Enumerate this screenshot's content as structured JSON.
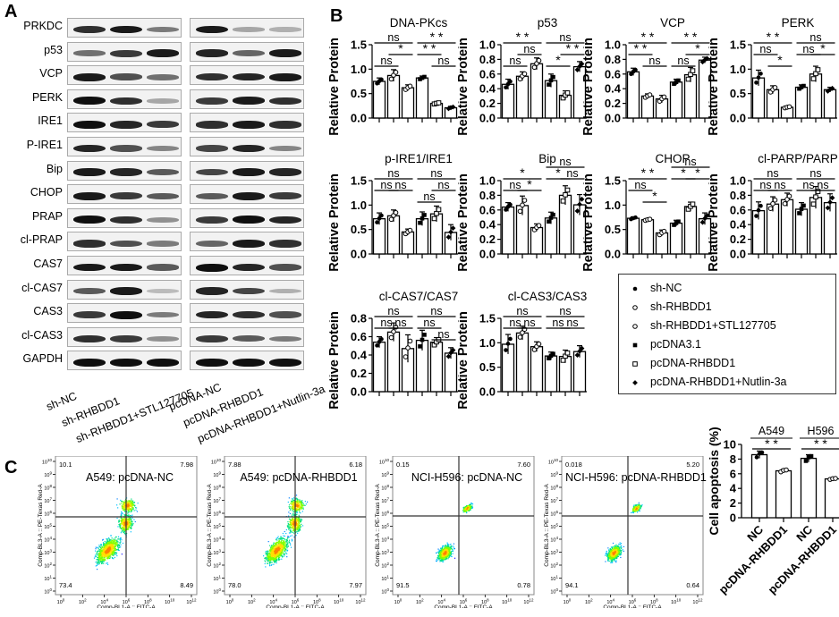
{
  "panels": {
    "A": "A",
    "B": "B",
    "C": "C"
  },
  "blot": {
    "proteins": [
      "PRKDC",
      "p53",
      "VCP",
      "PERK",
      "IRE1",
      "P-IRE1",
      "Bip",
      "CHOP",
      "PRAP",
      "cl-PRAP",
      "CAS7",
      "cl-CAS7",
      "CAS3",
      "cl-CAS3",
      "GAPDH"
    ],
    "lanes": [
      "sh-NC",
      "sh-RHBDD1",
      "sh-RHBDD1+STL127705",
      "pcDNA-NC",
      "pcDNA-RHBDD1",
      "pcDNA-RHBDD1+Nutlin-3a"
    ],
    "band_intensity": [
      [
        0.85,
        0.95,
        0.5,
        0.95,
        0.3,
        0.25
      ],
      [
        0.55,
        0.8,
        0.95,
        0.9,
        0.6,
        0.95
      ],
      [
        0.95,
        0.7,
        0.55,
        0.85,
        0.9,
        0.95
      ],
      [
        1.0,
        0.85,
        0.3,
        0.8,
        0.95,
        0.85
      ],
      [
        1.0,
        0.9,
        0.8,
        0.85,
        0.95,
        0.85
      ],
      [
        0.9,
        0.7,
        0.45,
        0.75,
        0.9,
        0.45
      ],
      [
        0.95,
        0.9,
        0.65,
        0.75,
        0.95,
        0.9
      ],
      [
        0.95,
        0.8,
        0.65,
        0.65,
        0.95,
        0.8
      ],
      [
        1.0,
        0.85,
        0.4,
        0.8,
        1.0,
        0.9
      ],
      [
        0.85,
        0.7,
        0.5,
        0.6,
        0.95,
        0.85
      ],
      [
        0.95,
        0.95,
        0.65,
        1.0,
        0.9,
        0.7
      ],
      [
        0.65,
        0.95,
        0.2,
        0.9,
        0.75,
        0.25
      ],
      [
        0.8,
        1.0,
        0.5,
        0.9,
        0.85,
        0.7
      ],
      [
        0.85,
        0.8,
        0.4,
        0.8,
        0.65,
        0.5
      ],
      [
        1.0,
        1.0,
        1.0,
        1.0,
        1.0,
        1.0
      ]
    ]
  },
  "legend": [
    {
      "marker": "filled-circle",
      "label": "sh-NC"
    },
    {
      "marker": "open-circle",
      "label": "sh-RHBDD1"
    },
    {
      "marker": "open-circle-small",
      "label": "sh-RHBDD1+STL127705"
    },
    {
      "marker": "filled-square",
      "label": "pcDNA3.1"
    },
    {
      "marker": "open-square",
      "label": "pcDNA-RHBDD1"
    },
    {
      "marker": "filled-diamond",
      "label": "pcDNA-RHBDD1+Nutlin-3a"
    }
  ],
  "chart_data": [
    {
      "type": "bar",
      "title": "DNA-PKcs",
      "ylabel": "Relative Protein",
      "ylim": [
        0,
        1.5
      ],
      "yticks": [
        "0.0",
        "0.5",
        "1.0",
        "1.5"
      ],
      "tickvals": [
        0,
        0.5,
        1.0,
        1.5
      ],
      "values": [
        0.75,
        0.87,
        0.62,
        0.82,
        0.3,
        0.21
      ],
      "errors": [
        0.07,
        0.12,
        0.06,
        0.04,
        0.02,
        0.03
      ],
      "sig": [
        {
          "a": 0,
          "b": 2,
          "label": "ns",
          "lvl": 2
        },
        {
          "a": 1,
          "b": 2,
          "label": "*",
          "lvl": 1
        },
        {
          "a": 0,
          "b": 1,
          "label": "ns",
          "lvl": 0
        },
        {
          "a": 3,
          "b": 5,
          "label": "**",
          "lvl": 2
        },
        {
          "a": 3,
          "b": 4,
          "label": "**",
          "lvl": 1
        },
        {
          "a": 4,
          "b": 5,
          "label": "ns",
          "lvl": 0
        }
      ]
    },
    {
      "type": "bar",
      "title": "p53",
      "ylabel": "Relative Protein",
      "ylim": [
        0,
        1.0
      ],
      "yticks": [
        "0.0",
        "0.2",
        "0.4",
        "0.6",
        "0.8",
        "1.0"
      ],
      "tickvals": [
        0,
        0.2,
        0.4,
        0.6,
        0.8,
        1.0
      ],
      "values": [
        0.46,
        0.57,
        0.74,
        0.51,
        0.31,
        0.7
      ],
      "errors": [
        0.07,
        0.06,
        0.08,
        0.09,
        0.06,
        0.07
      ],
      "sig": [
        {
          "a": 0,
          "b": 2,
          "label": "**",
          "lvl": 2
        },
        {
          "a": 1,
          "b": 2,
          "label": "ns",
          "lvl": 1
        },
        {
          "a": 0,
          "b": 1,
          "label": "ns",
          "lvl": 0
        },
        {
          "a": 3,
          "b": 5,
          "label": "ns",
          "lvl": 2
        },
        {
          "a": 4,
          "b": 5,
          "label": "**",
          "lvl": 1
        },
        {
          "a": 3,
          "b": 4,
          "label": "*",
          "lvl": 0
        }
      ]
    },
    {
      "type": "bar",
      "title": "VCP",
      "ylabel": "Relative Protein",
      "ylim": [
        0,
        1.0
      ],
      "yticks": [
        "0.0",
        "0.2",
        "0.4",
        "0.6",
        "0.8",
        "1.0"
      ],
      "tickvals": [
        0,
        0.2,
        0.4,
        0.6,
        0.8,
        1.0
      ],
      "values": [
        0.63,
        0.3,
        0.26,
        0.49,
        0.59,
        0.79
      ],
      "errors": [
        0.05,
        0.03,
        0.05,
        0.04,
        0.1,
        0.04
      ],
      "sig": [
        {
          "a": 0,
          "b": 2,
          "label": "**",
          "lvl": 2
        },
        {
          "a": 0,
          "b": 1,
          "label": "**",
          "lvl": 1
        },
        {
          "a": 1,
          "b": 2,
          "label": "ns",
          "lvl": 0
        },
        {
          "a": 3,
          "b": 5,
          "label": "**",
          "lvl": 2
        },
        {
          "a": 4,
          "b": 5,
          "label": "*",
          "lvl": 1
        },
        {
          "a": 3,
          "b": 4,
          "label": "ns",
          "lvl": 0
        }
      ]
    },
    {
      "type": "bar",
      "title": "PERK",
      "ylabel": "Relative Protein",
      "ylim": [
        0,
        1.5
      ],
      "yticks": [
        "0.0",
        "0.5",
        "1.0",
        "1.5"
      ],
      "tickvals": [
        0,
        0.5,
        1.0,
        1.5
      ],
      "values": [
        0.82,
        0.58,
        0.22,
        0.63,
        0.9,
        0.58
      ],
      "errors": [
        0.16,
        0.08,
        0.02,
        0.05,
        0.16,
        0.05
      ],
      "sig": [
        {
          "a": 0,
          "b": 2,
          "label": "**",
          "lvl": 2
        },
        {
          "a": 0,
          "b": 1,
          "label": "ns",
          "lvl": 1
        },
        {
          "a": 1,
          "b": 2,
          "label": "*",
          "lvl": 0
        },
        {
          "a": 3,
          "b": 5,
          "label": "ns",
          "lvl": 2
        },
        {
          "a": 4,
          "b": 5,
          "label": "*",
          "lvl": 1
        },
        {
          "a": 3,
          "b": 4,
          "label": "ns",
          "lvl": 1
        }
      ]
    },
    {
      "type": "bar",
      "title": "p-IRE1/IRE1",
      "ylabel": "Relative Protein",
      "ylim": [
        0,
        1.5
      ],
      "yticks": [
        "0.0",
        "0.5",
        "1.0",
        "1.5"
      ],
      "tickvals": [
        0,
        0.5,
        1.0,
        1.5
      ],
      "values": [
        0.72,
        0.78,
        0.45,
        0.72,
        0.82,
        0.44
      ],
      "errors": [
        0.12,
        0.12,
        0.06,
        0.14,
        0.16,
        0.16
      ],
      "sig": [
        {
          "a": 0,
          "b": 2,
          "label": "ns",
          "lvl": 2
        },
        {
          "a": 0,
          "b": 1,
          "label": "ns",
          "lvl": 1
        },
        {
          "a": 1,
          "b": 2,
          "label": "ns",
          "lvl": 1
        },
        {
          "a": 3,
          "b": 5,
          "label": "ns",
          "lvl": 2
        },
        {
          "a": 4,
          "b": 5,
          "label": "ns",
          "lvl": 1
        },
        {
          "a": 3,
          "b": 4,
          "label": "ns",
          "lvl": 0
        }
      ]
    },
    {
      "type": "bar",
      "title": "Bip",
      "ylabel": "Relative Protein",
      "ylim": [
        0,
        1.0
      ],
      "yticks": [
        "0.0",
        "0.2",
        "0.4",
        "0.6",
        "0.8",
        "1.0"
      ],
      "tickvals": [
        0,
        0.2,
        0.4,
        0.6,
        0.8,
        1.0
      ],
      "values": [
        0.64,
        0.66,
        0.36,
        0.49,
        0.8,
        0.67
      ],
      "errors": [
        0.06,
        0.13,
        0.05,
        0.08,
        0.13,
        0.14
      ],
      "sig": [
        {
          "a": 0,
          "b": 2,
          "label": "*",
          "lvl": 2
        },
        {
          "a": 0,
          "b": 1,
          "label": "ns",
          "lvl": 1
        },
        {
          "a": 1,
          "b": 2,
          "label": "*",
          "lvl": 1
        },
        {
          "a": 3,
          "b": 5,
          "label": "ns",
          "lvl": 3
        },
        {
          "a": 3,
          "b": 4,
          "label": "*",
          "lvl": 2
        },
        {
          "a": 4,
          "b": 5,
          "label": "ns",
          "lvl": 2
        }
      ]
    },
    {
      "type": "bar",
      "title": "CHOP",
      "ylabel": "Relative Protein",
      "ylim": [
        0,
        1.5
      ],
      "yticks": [
        "0.0",
        "0.5",
        "1.0",
        "1.5"
      ],
      "tickvals": [
        0,
        0.5,
        1.0,
        1.5
      ],
      "values": [
        0.73,
        0.7,
        0.43,
        0.63,
        0.97,
        0.72
      ],
      "errors": [
        0.03,
        0.02,
        0.06,
        0.06,
        0.09,
        0.12
      ],
      "sig": [
        {
          "a": 0,
          "b": 2,
          "label": "**",
          "lvl": 2
        },
        {
          "a": 0,
          "b": 1,
          "label": "ns",
          "lvl": 1
        },
        {
          "a": 1,
          "b": 2,
          "label": "*",
          "lvl": 0
        },
        {
          "a": 3,
          "b": 5,
          "label": "ns",
          "lvl": 3
        },
        {
          "a": 3,
          "b": 4,
          "label": "*",
          "lvl": 2
        },
        {
          "a": 4,
          "b": 5,
          "label": "*",
          "lvl": 2
        }
      ]
    },
    {
      "type": "bar",
      "title": "cl-PARP/PARP",
      "ylabel": "Relative Protein",
      "ylim": [
        0,
        1.0
      ],
      "yticks": [
        "0.0",
        "0.2",
        "0.4",
        "0.6",
        "0.8",
        "1.0"
      ],
      "tickvals": [
        0,
        0.2,
        0.4,
        0.6,
        0.8,
        1.0
      ],
      "values": [
        0.59,
        0.68,
        0.74,
        0.61,
        0.77,
        0.7
      ],
      "errors": [
        0.12,
        0.1,
        0.09,
        0.09,
        0.15,
        0.12
      ],
      "sig": [
        {
          "a": 0,
          "b": 2,
          "label": "ns",
          "lvl": 2
        },
        {
          "a": 0,
          "b": 1,
          "label": "ns",
          "lvl": 1
        },
        {
          "a": 1,
          "b": 2,
          "label": "ns",
          "lvl": 1
        },
        {
          "a": 3,
          "b": 5,
          "label": "ns",
          "lvl": 2
        },
        {
          "a": 3,
          "b": 4,
          "label": "ns",
          "lvl": 1
        },
        {
          "a": 4,
          "b": 5,
          "label": "ns",
          "lvl": 1
        }
      ]
    },
    {
      "type": "bar",
      "title": "cl-CAS7/CAS7",
      "ylabel": "Relative Protein",
      "ylim": [
        0,
        0.8
      ],
      "yticks": [
        "0.0",
        "0.2",
        "0.4",
        "0.6",
        "0.8"
      ],
      "tickvals": [
        0,
        0.2,
        0.4,
        0.6,
        0.8
      ],
      "values": [
        0.54,
        0.65,
        0.47,
        0.56,
        0.54,
        0.42
      ],
      "errors": [
        0.06,
        0.1,
        0.15,
        0.11,
        0.05,
        0.06
      ],
      "sig": [
        {
          "a": 0,
          "b": 2,
          "label": "ns",
          "lvl": 2
        },
        {
          "a": 0,
          "b": 1,
          "label": "ns",
          "lvl": 1
        },
        {
          "a": 1,
          "b": 2,
          "label": "ns",
          "lvl": 1
        },
        {
          "a": 3,
          "b": 5,
          "label": "ns",
          "lvl": 2
        },
        {
          "a": 3,
          "b": 4,
          "label": "ns",
          "lvl": 1
        },
        {
          "a": 4,
          "b": 5,
          "label": "ns",
          "lvl": 0
        }
      ]
    },
    {
      "type": "bar",
      "title": "cl-CAS3/CAS3",
      "ylabel": "Relative Protein",
      "ylim": [
        0,
        1.5
      ],
      "yticks": [
        "0.0",
        "0.5",
        "1.0",
        "1.5"
      ],
      "tickvals": [
        0,
        0.5,
        1.0,
        1.5
      ],
      "values": [
        0.97,
        1.2,
        0.92,
        0.73,
        0.72,
        0.82
      ],
      "errors": [
        0.2,
        0.14,
        0.1,
        0.08,
        0.13,
        0.12
      ],
      "sig": [
        {
          "a": 0,
          "b": 2,
          "label": "ns",
          "lvl": 2
        },
        {
          "a": 0,
          "b": 1,
          "label": "ns",
          "lvl": 1
        },
        {
          "a": 1,
          "b": 2,
          "label": "ns",
          "lvl": 1
        },
        {
          "a": 3,
          "b": 5,
          "label": "ns",
          "lvl": 2
        },
        {
          "a": 3,
          "b": 4,
          "label": "ns",
          "lvl": 1
        },
        {
          "a": 4,
          "b": 5,
          "label": "ns",
          "lvl": 1
        }
      ]
    }
  ],
  "flow": [
    {
      "title": "A549: pcDNA-NC",
      "q_ul": "10.1",
      "q_ur": "7.98",
      "q_ll": "73.4",
      "q_lr": "8.49",
      "style": "a549"
    },
    {
      "title": "A549: pcDNA-RHBDD1",
      "q_ul": "7.88",
      "q_ur": "6.18",
      "q_ll": "78.0",
      "q_lr": "7.97",
      "style": "a549"
    },
    {
      "title": "NCI-H596: pcDNA-NC",
      "q_ul": "0.15",
      "q_ur": "7.60",
      "q_ll": "91.5",
      "q_lr": "0.78",
      "style": "h596"
    },
    {
      "title": "NCI-H596: pcDNA-RHBDD1",
      "q_ul": "0.018",
      "q_ur": "5.20",
      "q_ll": "94.1",
      "q_lr": "0.64",
      "style": "h596"
    }
  ],
  "flow_axes": {
    "xlabel": "Comp-BL1-A :: FITC-A",
    "ylabel": "Comp-BL3-A :: PE-Texas Red-A",
    "xticks": [
      "0",
      "2",
      "4",
      "6",
      "8",
      "10",
      "12"
    ],
    "yticks": [
      "0",
      "1",
      "2",
      "3",
      "4",
      "5",
      "6",
      "7",
      "8",
      "9",
      "10"
    ]
  },
  "apoptosis": {
    "type": "bar",
    "ylabel": "Cell apoptosis (%)",
    "ylim": [
      0,
      10
    ],
    "yticks": [
      "0",
      "2",
      "4",
      "6",
      "8",
      "10"
    ],
    "groups": [
      "A549",
      "H596"
    ],
    "categories": [
      "NC",
      "pcDNA-RHBDD1",
      "NC",
      "pcDNA-RHBDD1"
    ],
    "values": [
      8.6,
      6.4,
      8.1,
      5.3
    ],
    "errors": [
      0.5,
      0.2,
      0.5,
      0.1
    ],
    "sig": [
      {
        "a": 0,
        "b": 1,
        "label": "**"
      },
      {
        "a": 2,
        "b": 3,
        "label": "**"
      }
    ]
  }
}
